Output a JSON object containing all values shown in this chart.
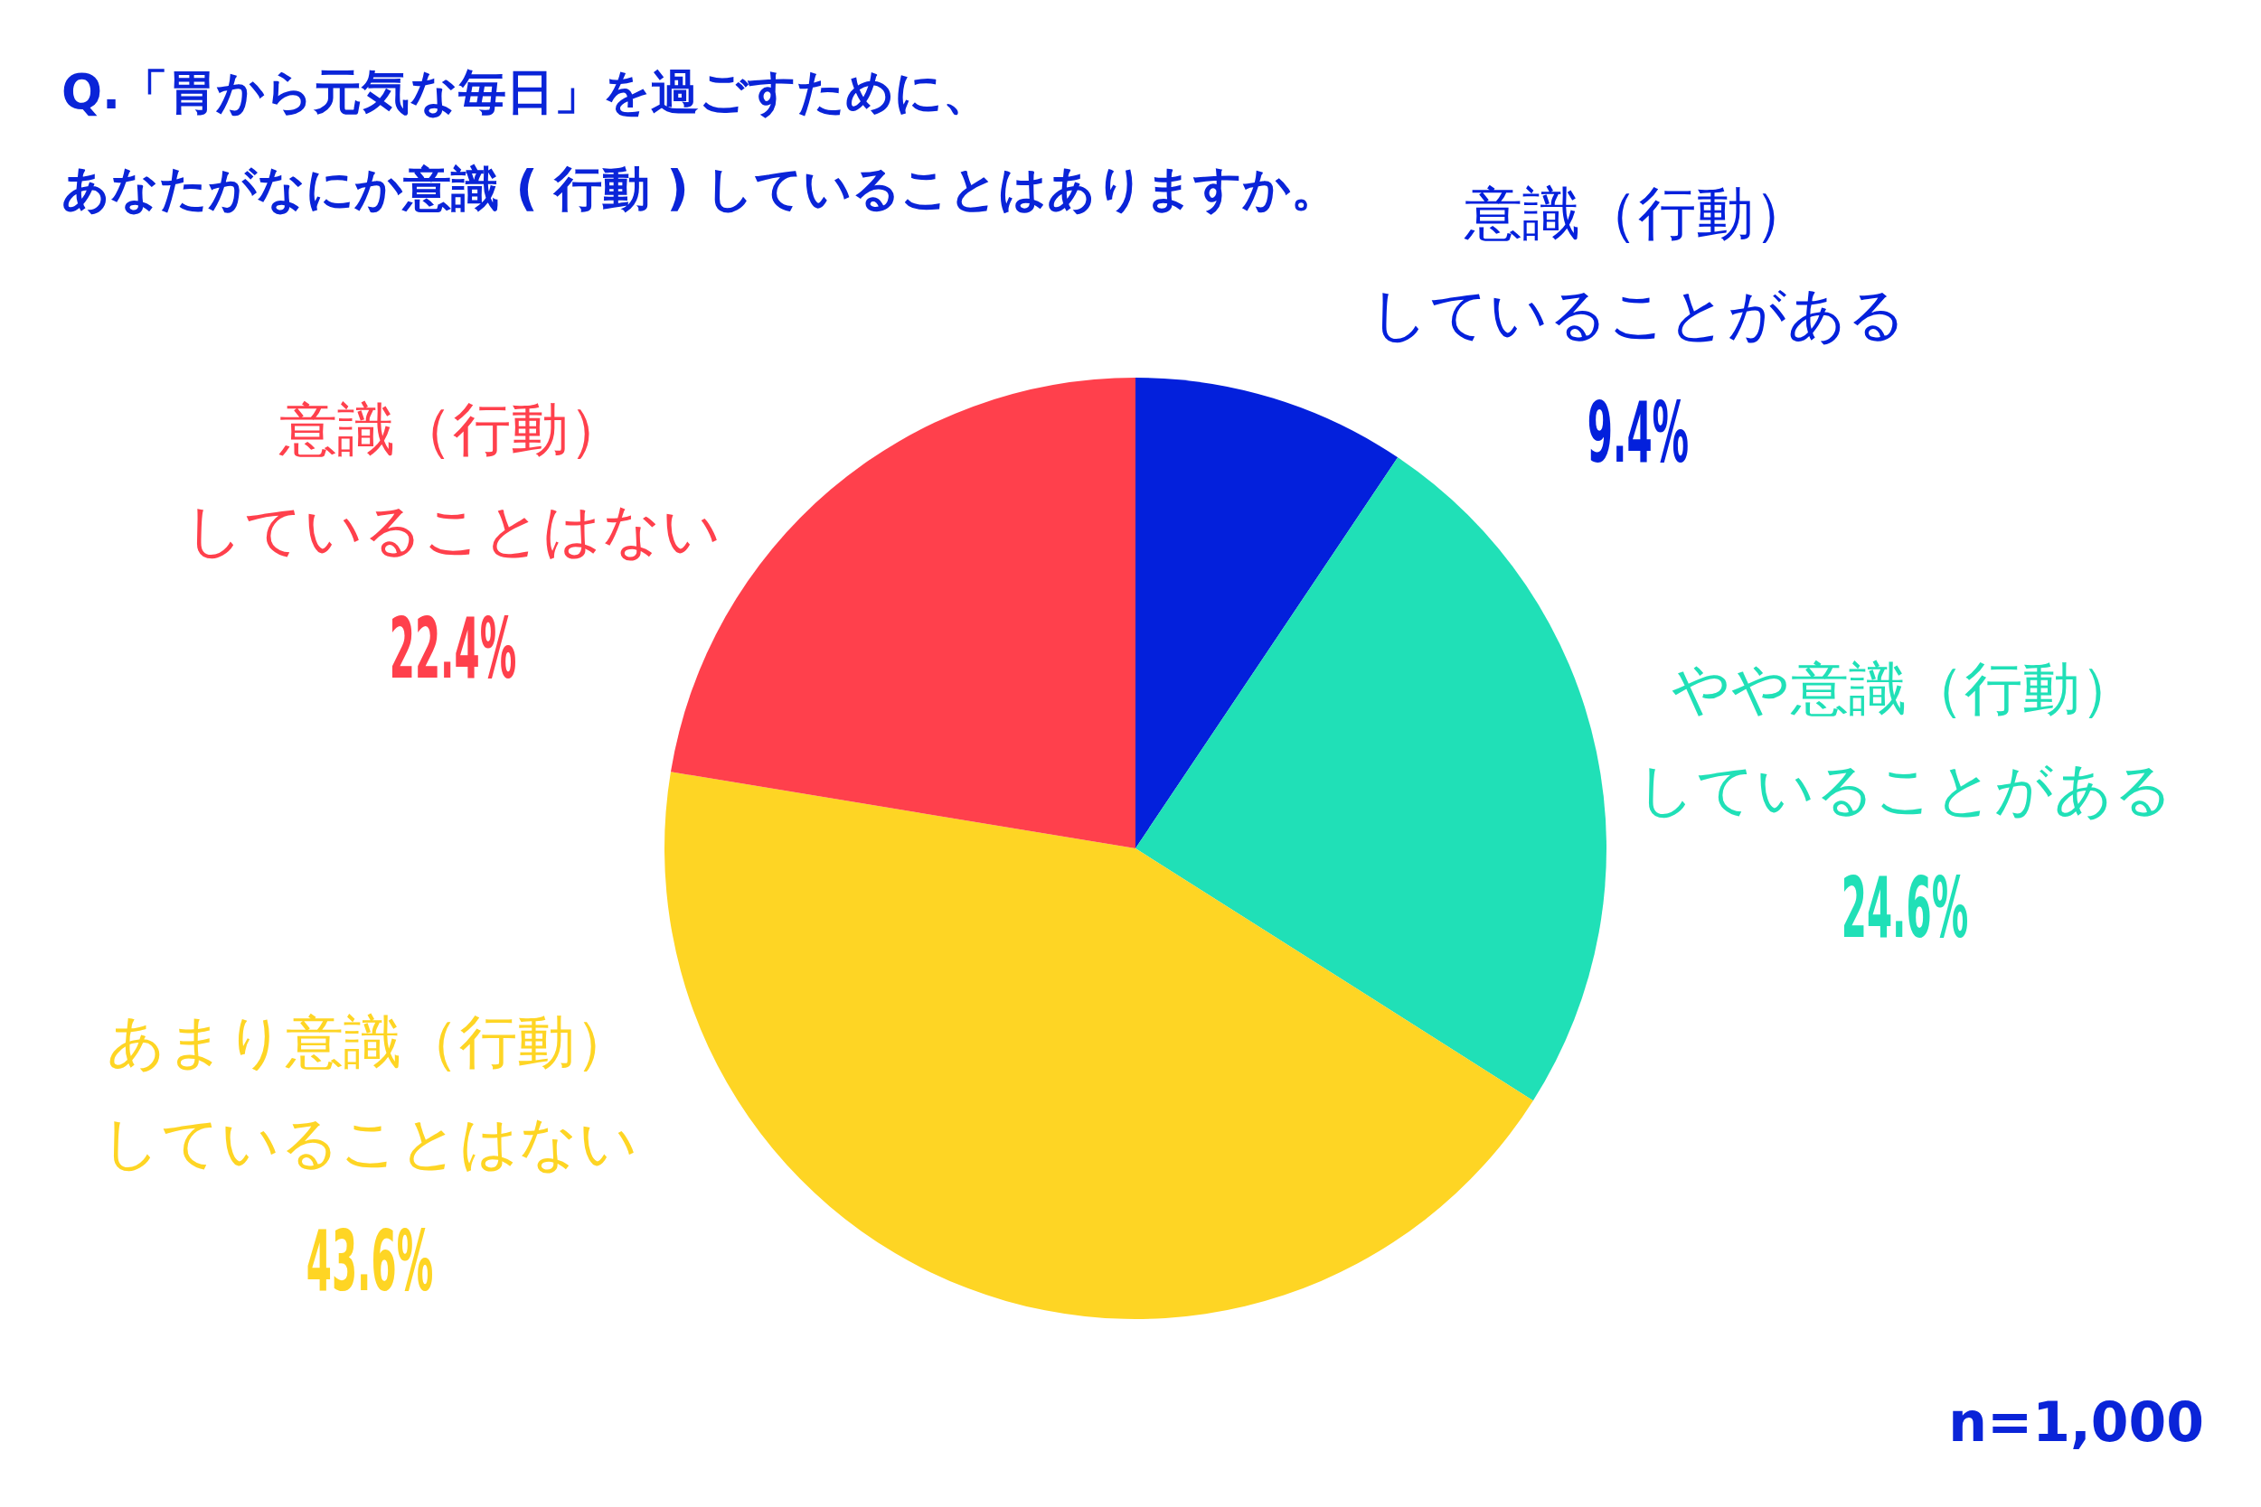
{
  "chart_data": {
    "type": "pie",
    "title": "Q.「胃から元気な毎日」を過ごすために、あなたがなにか意識 ( 行動 ) していることはありますか。",
    "categories": [
      "意識（行動）していることがある",
      "やや意識（行動）していることがある",
      "あまり意識（行動）していることはない",
      "意識（行動）していることはない"
    ],
    "values": [
      9.4,
      24.6,
      43.6,
      22.4
    ],
    "colors": [
      "#0320dc",
      "#20e0b7",
      "#fed524",
      "#ff404c"
    ],
    "value_labels": [
      "9.4%",
      "24.6%",
      "43.6%",
      "22.4%"
    ],
    "annotations": [
      "n=1,000"
    ]
  }
}
